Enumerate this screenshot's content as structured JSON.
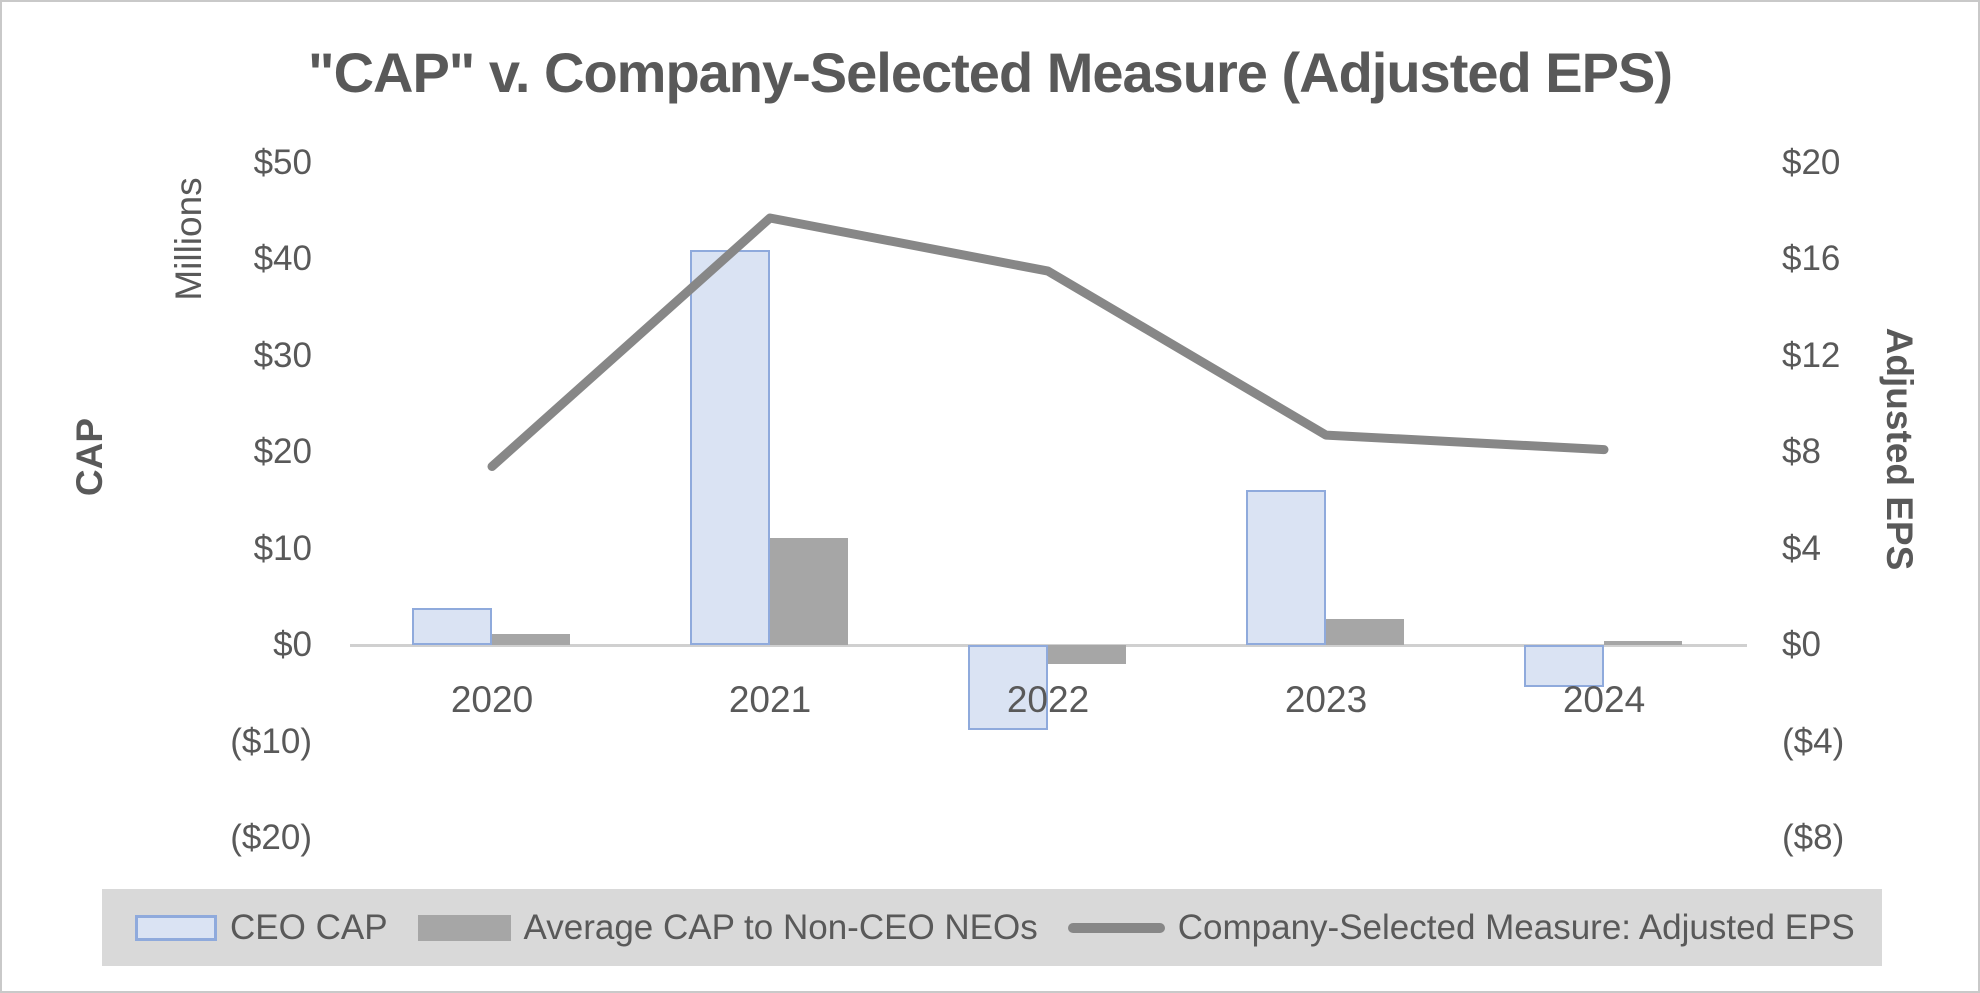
{
  "title": "\"CAP\" v. Company-Selected Measure (Adjusted EPS)",
  "colors": {
    "text": "#595959",
    "ceo_bar_fill": "#dae3f3",
    "ceo_bar_border": "#8faadc",
    "neo_bar_fill": "#a6a6a6",
    "eps_line": "#878787",
    "axis_line": "#d0d0d0",
    "legend_band": "#d9d9d9"
  },
  "chart_data": {
    "type": "combo-bar-line",
    "categories": [
      "2020",
      "2021",
      "2022",
      "2023",
      "2024"
    ],
    "series": [
      {
        "name": "CEO CAP",
        "type": "bar",
        "axis": "left",
        "values": [
          3.8,
          40.9,
          -8.8,
          16.1,
          -4.4
        ]
      },
      {
        "name": "Average CAP to Non-CEO NEOs",
        "type": "bar",
        "axis": "left",
        "values": [
          1.1,
          11.1,
          -2.0,
          2.7,
          0.4
        ]
      },
      {
        "name": "Company-Selected Measure: Adjusted EPS",
        "type": "line",
        "axis": "right",
        "values": [
          7.4,
          17.7,
          15.5,
          8.7,
          8.1
        ]
      }
    ],
    "left_axis": {
      "title": "CAP",
      "units_label": "Millions",
      "tick_values": [
        50,
        40,
        30,
        20,
        10,
        0,
        -10,
        -20
      ],
      "tick_labels": [
        "$50",
        "$40",
        "$30",
        "$20",
        "$10",
        "$0",
        "($10)",
        "($20)"
      ],
      "range": [
        -20,
        50
      ]
    },
    "right_axis": {
      "title": "Adjusted EPS",
      "tick_values": [
        20,
        16,
        12,
        8,
        4,
        0,
        -4,
        -8
      ],
      "tick_labels": [
        "$20",
        "$16",
        "$12",
        "$8",
        "$4",
        "$0",
        "($4)",
        "($8)"
      ],
      "range": [
        -8,
        20
      ]
    },
    "legend_position": "bottom",
    "gridlines": "zero-line-only"
  }
}
